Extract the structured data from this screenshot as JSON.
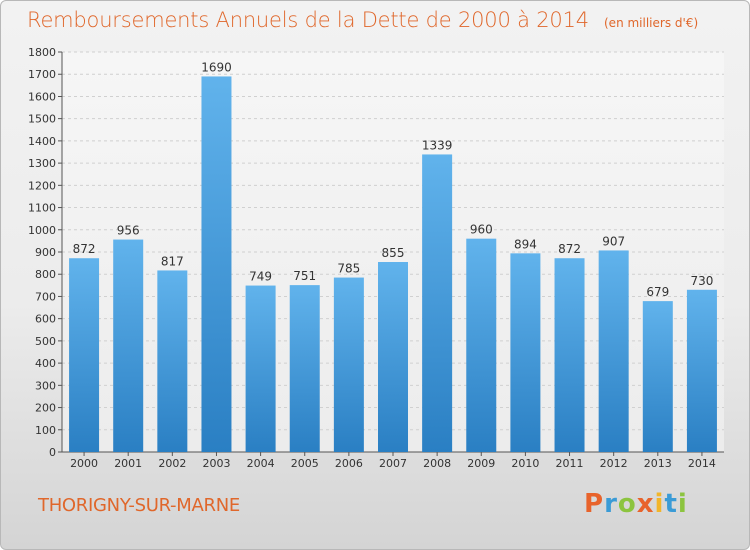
{
  "header": {
    "title": "Remboursements Annuels de la Dette de 2000 à 2014",
    "subtitle": "(en milliers d'€)"
  },
  "footer": {
    "city": "THORIGNY-SUR-MARNE",
    "logo": "Proxiti"
  },
  "colors": {
    "title": "#e0672b",
    "bar_top": "#61b3ec",
    "bar_bottom": "#2a7fc3",
    "grid": "#d0d0d0"
  },
  "chart_data": {
    "type": "bar",
    "title": "Remboursements Annuels de la Dette de 2000 à 2014",
    "subtitle": "(en milliers d'€)",
    "categories": [
      "2000",
      "2001",
      "2002",
      "2003",
      "2004",
      "2005",
      "2006",
      "2007",
      "2008",
      "2009",
      "2010",
      "2011",
      "2012",
      "2013",
      "2014"
    ],
    "values": [
      872,
      956,
      817,
      1690,
      749,
      751,
      785,
      855,
      1339,
      960,
      894,
      872,
      907,
      679,
      730
    ],
    "ylim": [
      0,
      1800
    ],
    "ytick_step": 100,
    "grid": true,
    "data_labels": true
  }
}
